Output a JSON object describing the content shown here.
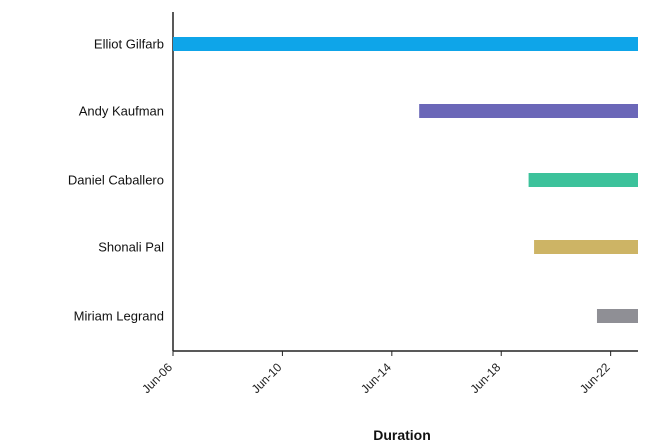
{
  "chart_data": {
    "type": "bar",
    "orientation": "horizontal",
    "xlabel": "Duration",
    "ylabel": "",
    "grid": false,
    "categories": [
      "Elliot Gilfarb",
      "Andy Kaufman",
      "Daniel Caballero",
      "Shonali Pal",
      "Miriam Legrand"
    ],
    "x_ticks": [
      "Jun-06",
      "Jun-10",
      "Jun-14",
      "Jun-18",
      "Jun-22"
    ],
    "xlim": [
      "2024-06-06",
      "2024-06-23"
    ],
    "bars": [
      {
        "name": "Elliot Gilfarb",
        "start": "2024-06-06",
        "end": "2024-06-23",
        "color": "#0ea5e9"
      },
      {
        "name": "Andy Kaufman",
        "start": "2024-06-15",
        "end": "2024-06-23",
        "color": "#6b67b8"
      },
      {
        "name": "Daniel Caballero",
        "start": "2024-06-19",
        "end": "2024-06-23",
        "color": "#3cc29b"
      },
      {
        "name": "Shonali Pal",
        "start": "2024-06-19.2",
        "end": "2024-06-23",
        "color": "#cdb465"
      },
      {
        "name": "Miriam Legrand",
        "start": "2024-06-21.5",
        "end": "2024-06-23",
        "color": "#8f8f95"
      }
    ]
  }
}
